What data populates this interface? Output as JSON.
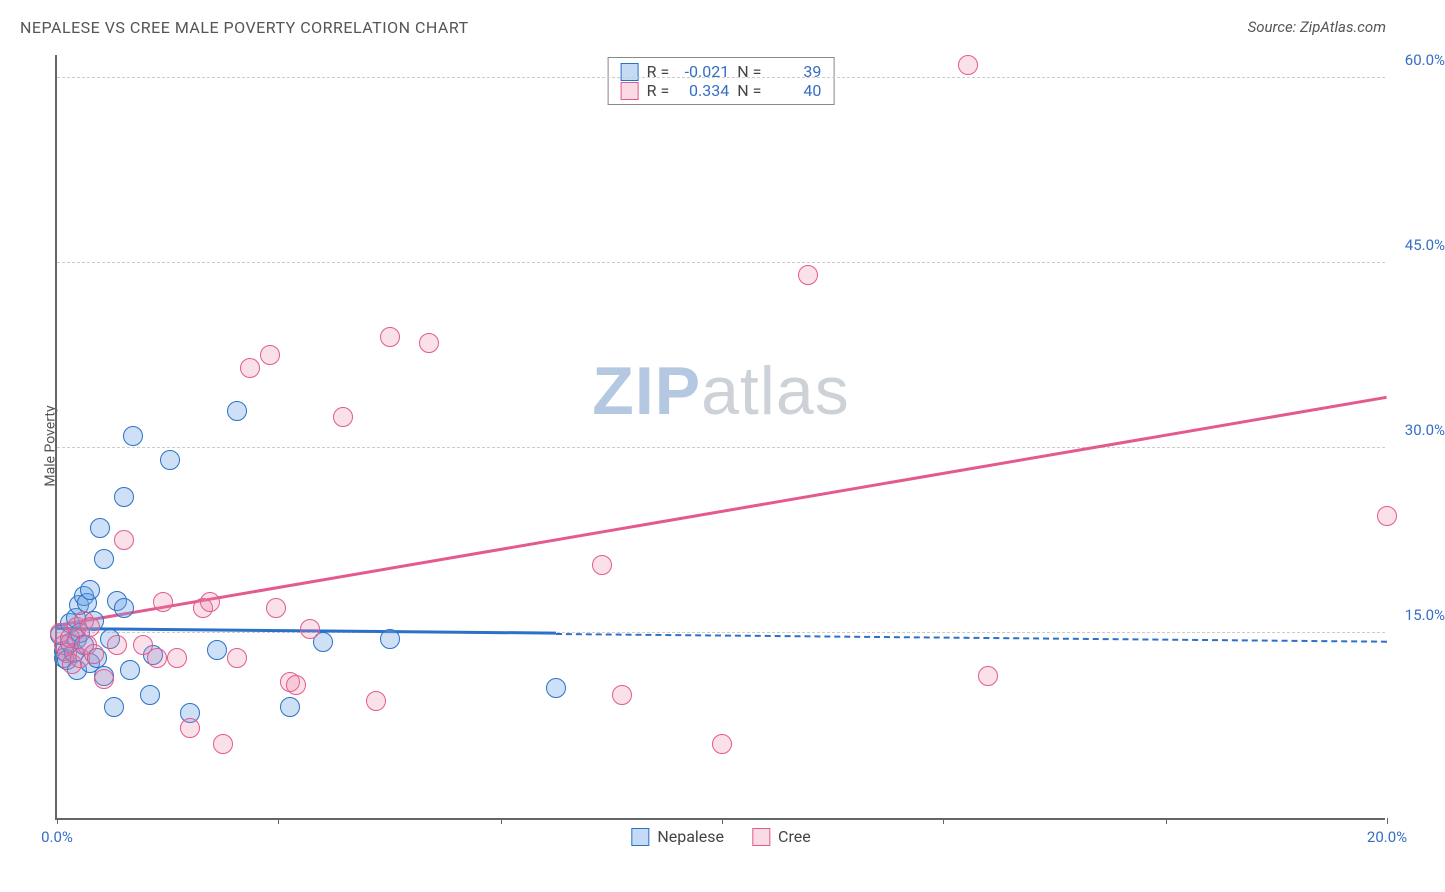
{
  "title": "NEPALESE VS CREE MALE POVERTY CORRELATION CHART",
  "source": "Source: ZipAtlas.com",
  "yaxis_label": "Male Poverty",
  "watermark_bold": "ZIP",
  "watermark_rest": "atlas",
  "chart": {
    "type": "scatter",
    "xlim": [
      0,
      20
    ],
    "ylim": [
      0,
      62
    ],
    "x_ticks": [
      0,
      3.33,
      6.67,
      10,
      13.33,
      16.67,
      20
    ],
    "x_tick_labels": {
      "0": "0.0%",
      "20": "20.0%"
    },
    "y_ticks": [
      15,
      30,
      45,
      60
    ],
    "y_tick_labels": [
      "15.0%",
      "30.0%",
      "45.0%",
      "60.0%"
    ],
    "grid_color": "#cccccc",
    "background_color": "#ffffff",
    "axis_color": "#666666",
    "tick_label_color": "#356ec5",
    "marker_radius": 10,
    "series": [
      {
        "name": "Nepalese",
        "color_fill": "rgba(111,166,230,0.35)",
        "color_stroke": "#2c71c9",
        "R": "-0.021",
        "N": "39",
        "trend": {
          "y_at_x0": 15.2,
          "y_at_xmax": 14.2,
          "solid_until_x": 7.5
        },
        "points": [
          [
            0.05,
            14.8
          ],
          [
            0.1,
            13.5
          ],
          [
            0.1,
            13.0
          ],
          [
            0.15,
            12.8
          ],
          [
            0.2,
            14.2
          ],
          [
            0.2,
            15.8
          ],
          [
            0.25,
            13.4
          ],
          [
            0.28,
            16.2
          ],
          [
            0.3,
            14.5
          ],
          [
            0.3,
            12.0
          ],
          [
            0.33,
            17.3
          ],
          [
            0.35,
            15.0
          ],
          [
            0.4,
            18.0
          ],
          [
            0.4,
            14.0
          ],
          [
            0.45,
            17.4
          ],
          [
            0.5,
            18.5
          ],
          [
            0.5,
            12.6
          ],
          [
            0.55,
            16.0
          ],
          [
            0.6,
            13.0
          ],
          [
            0.65,
            23.5
          ],
          [
            0.7,
            21.0
          ],
          [
            0.7,
            11.5
          ],
          [
            0.8,
            14.5
          ],
          [
            0.85,
            9.0
          ],
          [
            0.9,
            17.6
          ],
          [
            1.0,
            26.0
          ],
          [
            1.0,
            17.0
          ],
          [
            1.1,
            12.0
          ],
          [
            1.15,
            31.0
          ],
          [
            1.4,
            10.0
          ],
          [
            1.45,
            13.2
          ],
          [
            1.7,
            29.0
          ],
          [
            2.0,
            8.5
          ],
          [
            2.4,
            13.6
          ],
          [
            2.7,
            33.0
          ],
          [
            3.5,
            9.0
          ],
          [
            4.0,
            14.3
          ],
          [
            5.0,
            14.5
          ],
          [
            7.5,
            10.5
          ]
        ]
      },
      {
        "name": "Cree",
        "color_fill": "rgba(236,132,168,0.25)",
        "color_stroke": "#e35a8f",
        "R": "0.334",
        "N": "40",
        "trend": {
          "y_at_x0": 15.5,
          "y_at_xmax": 34.0,
          "solid_until_x": 20
        },
        "points": [
          [
            0.05,
            15.0
          ],
          [
            0.1,
            14.0
          ],
          [
            0.15,
            13.4
          ],
          [
            0.2,
            14.6
          ],
          [
            0.22,
            12.5
          ],
          [
            0.3,
            15.5
          ],
          [
            0.35,
            13.0
          ],
          [
            0.4,
            16.0
          ],
          [
            0.45,
            14.0
          ],
          [
            0.5,
            15.5
          ],
          [
            0.55,
            13.3
          ],
          [
            0.7,
            11.3
          ],
          [
            0.9,
            14.0
          ],
          [
            1.0,
            22.5
          ],
          [
            1.3,
            14.0
          ],
          [
            1.5,
            13.0
          ],
          [
            1.6,
            17.5
          ],
          [
            1.8,
            13.0
          ],
          [
            2.0,
            7.3
          ],
          [
            2.2,
            17.0
          ],
          [
            2.3,
            17.5
          ],
          [
            2.5,
            6.0
          ],
          [
            2.7,
            13.0
          ],
          [
            2.9,
            36.5
          ],
          [
            3.2,
            37.5
          ],
          [
            3.3,
            17.0
          ],
          [
            3.5,
            11.0
          ],
          [
            3.6,
            10.8
          ],
          [
            3.8,
            15.3
          ],
          [
            4.3,
            32.5
          ],
          [
            4.8,
            9.5
          ],
          [
            5.0,
            39.0
          ],
          [
            5.6,
            38.5
          ],
          [
            8.2,
            20.5
          ],
          [
            8.5,
            10.0
          ],
          [
            10.0,
            6.0
          ],
          [
            11.3,
            44.0
          ],
          [
            13.7,
            61.0
          ],
          [
            14.0,
            11.5
          ],
          [
            20.0,
            24.5
          ]
        ]
      }
    ]
  },
  "stat_labels": {
    "R": "R =",
    "N": "N ="
  },
  "legend_bottom": [
    "Nepalese",
    "Cree"
  ]
}
